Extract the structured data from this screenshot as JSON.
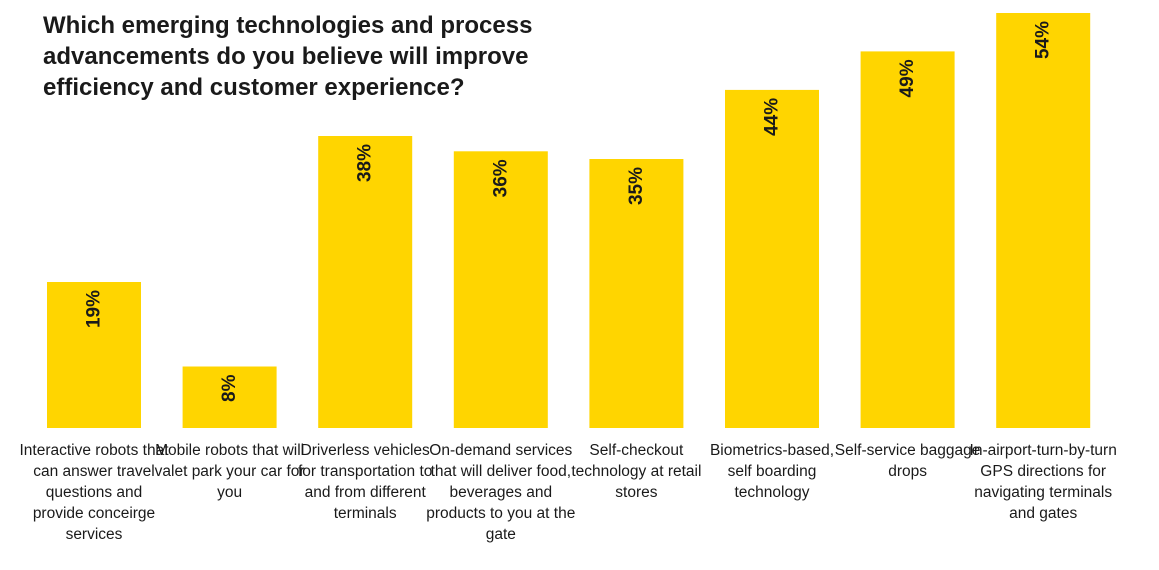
{
  "chart_data": {
    "type": "bar",
    "title": "Which emerging technologies and process advancements do you believe will improve efficiency and customer experience?",
    "categories": [
      "Interactive robots that can answer travel questions and provide conceirge services",
      "Mobile robots that will valet park your car for you",
      "Driverless vehicles for transportation to and from different terminals",
      "On-demand services that will deliver food, beverages and products to you at the gate",
      "Self-checkout technology at retail stores",
      "Biometrics-based, self boarding technology",
      "Self-service baggage drops",
      "In-airport-turn-by-turn GPS directions for navigating terminals and gates"
    ],
    "values": [
      19,
      8,
      38,
      36,
      35,
      44,
      49,
      54
    ],
    "labels": [
      "19%",
      "8%",
      "38%",
      "36%",
      "35%",
      "44%",
      "49%",
      "54%"
    ],
    "ylim": [
      0,
      54
    ],
    "xlabel": "",
    "ylabel": "",
    "grid": false,
    "bar_color": "#FFD500"
  }
}
